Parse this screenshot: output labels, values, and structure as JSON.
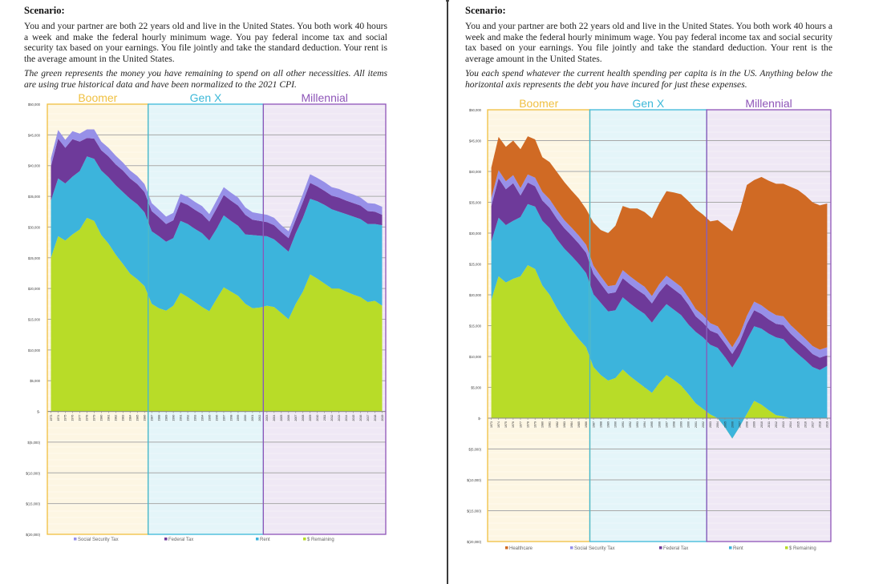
{
  "pages": [
    {
      "heading": "Scenario:",
      "paragraph": "You and your partner are both 22 years old and live in the United States. You both work 40 hours a week and make the federal hourly minimum wage. You pay federal income tax and social security tax based on your earnings. You file jointly and take the standard deduction. Your rent is the average amount in the United States.",
      "note": "The green represents the money you have remaining to spend on all other necessities. All items are using true historical data and have been normalized to the 2021 CPI."
    },
    {
      "heading": "Scenario:",
      "paragraph": "You and your partner are both 22 years old and live in the United States. You both work 40 hours a week and make the federal hourly minimum wage. You pay federal income tax and social security tax based on your earnings. You file jointly and take the standard deduction. Your rent is the average amount in the United States.",
      "note": "You each spend whatever the current health spending per capita is in the US. Anything below the horizontal axis represents the debt you have incured for just these expenses."
    }
  ],
  "chart_data": [
    {
      "type": "area",
      "stacked": true,
      "title": "",
      "xlabel": "",
      "ylabel": "",
      "ylim": [
        -20000,
        50000
      ],
      "y_ticks": [
        "$50,000",
        "$45,000",
        "$40,000",
        "$35,000",
        "$30,000",
        "$25,000",
        "$20,000",
        "$15,000",
        "$10,000",
        "$5,000",
        "$-",
        "$(5,000)",
        "$(10,000)",
        "$(15,000)",
        "$(20,000)"
      ],
      "y_tick_values": [
        50000,
        45000,
        40000,
        35000,
        30000,
        25000,
        20000,
        15000,
        10000,
        5000,
        0,
        -5000,
        -10000,
        -15000,
        -20000
      ],
      "grid": true,
      "legend": "bottom",
      "generations": [
        {
          "name": "Boomer",
          "from": 1973,
          "to": 1986,
          "color": "#f0c040",
          "bg": "#fdf6e3"
        },
        {
          "name": "Gen X",
          "from": 1987,
          "to": 2002,
          "color": "#3cb8d8",
          "bg": "#e4f5f9"
        },
        {
          "name": "Millennial",
          "from": 2003,
          "to": 2019,
          "color": "#8e55b8",
          "bg": "#efe8f5"
        }
      ],
      "x": [
        1973,
        1974,
        1975,
        1976,
        1977,
        1978,
        1979,
        1980,
        1981,
        1982,
        1983,
        1984,
        1985,
        1986,
        1987,
        1988,
        1989,
        1990,
        1991,
        1992,
        1993,
        1994,
        1995,
        1996,
        1997,
        1998,
        1999,
        2000,
        2001,
        2002,
        2003,
        2004,
        2005,
        2006,
        2007,
        2008,
        2009,
        2010,
        2011,
        2012,
        2013,
        2014,
        2015,
        2016,
        2017,
        2018,
        2019
      ],
      "series": [
        {
          "name": "$ Remaining",
          "color": "#b8dc28",
          "values": [
            25000,
            28500,
            27800,
            28800,
            29600,
            31500,
            31000,
            28700,
            27300,
            25500,
            24000,
            22400,
            21500,
            20400,
            17500,
            16800,
            16400,
            17200,
            19300,
            18600,
            17800,
            17000,
            16300,
            18300,
            20200,
            19500,
            18800,
            17500,
            16800,
            16900,
            17200,
            17000,
            16000,
            15000,
            17500,
            19500,
            22300,
            21600,
            20800,
            20000,
            20000,
            19500,
            19000,
            18600,
            17800,
            18000,
            17200
          ]
        },
        {
          "name": "Rent",
          "color": "#3cb4dc",
          "values": [
            9300,
            9400,
            9300,
            9400,
            9500,
            10000,
            10100,
            10500,
            10800,
            11300,
            11700,
            12200,
            12200,
            12000,
            11800,
            11700,
            11200,
            11000,
            11700,
            11900,
            11900,
            12000,
            11500,
            11400,
            11700,
            11500,
            11400,
            11300,
            11900,
            11700,
            11300,
            11000,
            11000,
            11000,
            11500,
            12000,
            12300,
            12600,
            12800,
            12900,
            12500,
            12600,
            12700,
            12700,
            12700,
            12500,
            13100
          ]
        },
        {
          "name": "Federal Tax",
          "color": "#6e3a9a",
          "values": [
            5600,
            6500,
            5800,
            6100,
            4800,
            3000,
            3300,
            3300,
            3400,
            3400,
            3500,
            3300,
            3300,
            3300,
            3300,
            3100,
            2900,
            2900,
            3100,
            3100,
            3100,
            3100,
            3100,
            3300,
            3300,
            3300,
            3300,
            3200,
            2500,
            2400,
            2300,
            2300,
            2200,
            2200,
            2200,
            2600,
            2600,
            2400,
            2300,
            2200,
            2300,
            2200,
            2200,
            2200,
            2100,
            2000,
            1700
          ]
        },
        {
          "name": "Social Security Tax",
          "color": "#9790e8",
          "values": [
            1300,
            1400,
            1300,
            1300,
            1300,
            1400,
            1500,
            1400,
            1400,
            1400,
            1300,
            1300,
            1300,
            1300,
            1300,
            1200,
            1200,
            1200,
            1300,
            1300,
            1300,
            1300,
            1200,
            1300,
            1300,
            1300,
            1300,
            1200,
            1200,
            1200,
            1200,
            1200,
            1100,
            1100,
            1200,
            1300,
            1400,
            1400,
            1400,
            1400,
            1400,
            1400,
            1400,
            1300,
            1300,
            1300,
            1300
          ]
        }
      ],
      "legend_entries": [
        {
          "label": "Social Security Tax",
          "color": "#9790e8"
        },
        {
          "label": "Federal Tax",
          "color": "#6e3a9a"
        },
        {
          "label": "Rent",
          "color": "#3cb4dc"
        },
        {
          "label": "$ Remaining",
          "color": "#b8dc28"
        }
      ]
    },
    {
      "type": "area",
      "stacked": true,
      "title": "",
      "xlabel": "",
      "ylabel": "",
      "ylim": [
        -20000,
        50000
      ],
      "y_ticks": [
        "$50,000",
        "$45,000",
        "$40,000",
        "$35,000",
        "$30,000",
        "$25,000",
        "$20,000",
        "$15,000",
        "$10,000",
        "$5,000",
        "$-",
        "$(5,000)",
        "$(10,000)",
        "$(15,000)",
        "$(20,000)"
      ],
      "y_tick_values": [
        50000,
        45000,
        40000,
        35000,
        30000,
        25000,
        20000,
        15000,
        10000,
        5000,
        0,
        -5000,
        -10000,
        -15000,
        -20000
      ],
      "grid": true,
      "legend": "bottom",
      "generations": [
        {
          "name": "Boomer",
          "from": 1973,
          "to": 1986,
          "color": "#f0c040",
          "bg": "#fdf6e3"
        },
        {
          "name": "Gen X",
          "from": 1987,
          "to": 2002,
          "color": "#3cb8d8",
          "bg": "#e4f5f9"
        },
        {
          "name": "Millennial",
          "from": 2003,
          "to": 2019,
          "color": "#8e55b8",
          "bg": "#efe8f5"
        }
      ],
      "x": [
        1973,
        1974,
        1975,
        1976,
        1977,
        1978,
        1979,
        1980,
        1981,
        1982,
        1983,
        1984,
        1985,
        1986,
        1987,
        1988,
        1989,
        1990,
        1991,
        1992,
        1993,
        1994,
        1995,
        1996,
        1997,
        1998,
        1999,
        2000,
        2001,
        2002,
        2003,
        2004,
        2005,
        2006,
        2007,
        2008,
        2009,
        2010,
        2011,
        2012,
        2013,
        2014,
        2015,
        2016,
        2017,
        2018,
        2019
      ],
      "series": [
        {
          "name": "$ Remaining",
          "color": "#b8dc28",
          "values": [
            19200,
            23000,
            22000,
            22600,
            23000,
            24800,
            24200,
            21500,
            20000,
            17800,
            16000,
            14300,
            12800,
            11500,
            8300,
            7000,
            6100,
            6500,
            7900,
            6800,
            5900,
            5000,
            4100,
            5700,
            7000,
            6200,
            5300,
            3900,
            2400,
            1500,
            600,
            0,
            -1500,
            -3300,
            -1400,
            700,
            2800,
            2200,
            1300,
            500,
            300,
            0,
            0,
            0,
            0,
            0,
            0
          ]
        },
        {
          "name": "Rent",
          "color": "#3cb4dc",
          "values": [
            9400,
            9500,
            9300,
            9400,
            9600,
            9900,
            10100,
            10500,
            10800,
            11200,
            11500,
            12000,
            12200,
            12000,
            11800,
            11700,
            11200,
            11000,
            11700,
            11800,
            11800,
            11900,
            11400,
            11400,
            11500,
            11400,
            11400,
            11300,
            11600,
            11600,
            11300,
            11400,
            11400,
            11500,
            11500,
            12000,
            12100,
            12300,
            12400,
            12600,
            12500,
            11500,
            10400,
            9400,
            8300,
            7800,
            8500
          ]
        },
        {
          "name": "Federal Tax",
          "color": "#6e3a9a",
          "values": [
            5800,
            6400,
            5800,
            6100,
            3500,
            3500,
            3300,
            3300,
            3300,
            3300,
            3300,
            3300,
            3300,
            3300,
            3300,
            3100,
            2900,
            2900,
            3100,
            3100,
            3100,
            3100,
            3100,
            3300,
            3300,
            3300,
            3300,
            3200,
            2500,
            2400,
            2300,
            2300,
            2200,
            2200,
            2200,
            2600,
            2600,
            2400,
            2300,
            2200,
            2300,
            2200,
            2200,
            2200,
            2100,
            2000,
            1700
          ]
        },
        {
          "name": "Social Security Tax",
          "color": "#9790e8",
          "values": [
            1300,
            1300,
            1300,
            1300,
            1200,
            1300,
            1400,
            1400,
            1400,
            1400,
            1300,
            1300,
            1300,
            1300,
            1300,
            1200,
            1200,
            1200,
            1300,
            1300,
            1300,
            1300,
            1200,
            1300,
            1300,
            1300,
            1300,
            1200,
            1200,
            1200,
            1200,
            1200,
            1100,
            1100,
            1200,
            1300,
            1400,
            1400,
            1400,
            1400,
            1400,
            1400,
            1400,
            1300,
            1300,
            1300,
            1300
          ]
        },
        {
          "name": "Healthcare",
          "color": "#d06a24",
          "values": [
            4900,
            5400,
            5600,
            5600,
            6300,
            6200,
            6200,
            5600,
            6000,
            6200,
            6200,
            6000,
            6000,
            5800,
            7000,
            7500,
            8600,
            9600,
            10400,
            11000,
            11900,
            12100,
            12600,
            13100,
            13700,
            14400,
            15000,
            15600,
            16200,
            16300,
            16500,
            17200,
            18000,
            18800,
            20000,
            21200,
            19700,
            20800,
            21100,
            21300,
            21500,
            22400,
            23000,
            23200,
            23300,
            23400,
            23300
          ]
        }
      ],
      "legend_entries": [
        {
          "label": "Healthcare",
          "color": "#d06a24"
        },
        {
          "label": "Social Security Tax",
          "color": "#9790e8"
        },
        {
          "label": "Federal Tax",
          "color": "#6e3a9a"
        },
        {
          "label": "Rent",
          "color": "#3cb4dc"
        },
        {
          "label": "$ Remaining",
          "color": "#b8dc28"
        }
      ]
    }
  ]
}
